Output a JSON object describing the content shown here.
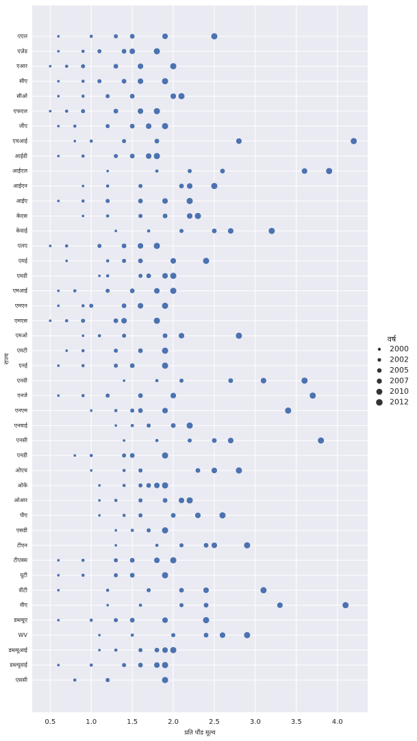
{
  "chart_data": {
    "type": "scatter",
    "x_label": "प्रति पौंड मूल्य",
    "y_label": "राज्य",
    "legend_title": "वर्ष",
    "categories": [
      "एएल",
      "एज़ेड",
      "एआर",
      "सीए",
      "सीओ",
      "एफएल",
      "जीए",
      "एचआई",
      "आईडी",
      "आईएल",
      "आईएन",
      "आईए",
      "केएस",
      "केवाई",
      "एलए",
      "एमई",
      "एमडी",
      "एमआई",
      "एमएन",
      "एमएस",
      "एमओ",
      "एमटी",
      "एनई",
      "एनवी",
      "एनजे",
      "एनएम",
      "एनवाई",
      "एनसी",
      "एनडी",
      "ओएच",
      "ओके",
      "ओआर",
      "पीए",
      "एसडी",
      "टीएन",
      "टीएक्स",
      "यूटी",
      "वीटी",
      "वीए",
      "डब्ल्यूए",
      "WV",
      "डब्ल्यूआई",
      "डब्ल्यूवाई",
      "एससी"
    ],
    "color": "#4c72b0",
    "series": [
      {
        "name": 2000,
        "values": [
          0.6,
          0.6,
          0.5,
          0.6,
          0.6,
          0.5,
          0.6,
          0.8,
          0.6,
          1.2,
          0.9,
          0.6,
          0.9,
          1.3,
          0.5,
          0.7,
          1.1,
          0.6,
          0.6,
          0.5,
          0.9,
          0.7,
          0.6,
          1.4,
          0.6,
          1.0,
          1.3,
          1.4,
          0.8,
          1.0,
          1.1,
          1.1,
          1.1,
          1.3,
          1.3,
          0.6,
          0.6,
          0.6,
          1.2,
          0.6,
          1.1,
          1.1,
          0.6,
          0.8
        ]
      },
      {
        "name": 2002,
        "values": [
          1.0,
          0.9,
          0.7,
          0.9,
          0.9,
          0.7,
          0.8,
          1.0,
          0.9,
          1.8,
          1.2,
          0.9,
          1.2,
          1.7,
          0.7,
          1.2,
          1.2,
          0.8,
          0.9,
          0.7,
          1.1,
          0.9,
          0.9,
          1.8,
          0.9,
          1.3,
          1.5,
          1.8,
          1.0,
          1.4,
          1.4,
          1.3,
          1.4,
          1.5,
          1.8,
          0.9,
          0.9,
          1.2,
          1.6,
          1.0,
          1.5,
          1.3,
          1.0,
          0.8
        ]
      },
      {
        "name": 2005,
        "values": [
          1.3,
          1.1,
          0.9,
          1.1,
          1.2,
          0.9,
          1.2,
          1.4,
          1.3,
          2.2,
          1.6,
          1.2,
          1.6,
          2.1,
          1.1,
          1.4,
          1.6,
          1.2,
          1.0,
          0.9,
          1.4,
          1.3,
          1.3,
          2.1,
          1.2,
          1.5,
          1.7,
          2.2,
          1.4,
          1.6,
          1.6,
          1.6,
          1.6,
          1.7,
          2.1,
          1.3,
          1.3,
          1.7,
          2.1,
          1.3,
          2.0,
          1.6,
          1.4,
          1.2
        ]
      },
      {
        "name": 2007,
        "values": [
          1.5,
          1.4,
          1.3,
          1.4,
          1.5,
          1.3,
          1.5,
          1.8,
          1.5,
          2.6,
          2.1,
          1.6,
          1.9,
          2.5,
          1.4,
          1.6,
          1.7,
          1.5,
          1.4,
          1.3,
          1.9,
          1.6,
          1.5,
          2.7,
          1.6,
          1.6,
          2.0,
          2.5,
          1.5,
          2.3,
          1.7,
          1.9,
          2.0,
          1.9,
          2.4,
          1.5,
          1.5,
          2.1,
          2.4,
          1.5,
          2.4,
          1.8,
          1.6,
          1.9
        ]
      },
      {
        "name": 2010,
        "values": [
          1.9,
          1.5,
          1.6,
          1.6,
          2.0,
          1.6,
          1.7,
          2.8,
          1.7,
          3.6,
          2.2,
          1.9,
          2.2,
          2.7,
          1.6,
          2.0,
          1.9,
          1.8,
          1.6,
          1.4,
          2.1,
          1.9,
          1.9,
          3.1,
          2.0,
          1.9,
          2.2,
          2.7,
          1.9,
          2.5,
          1.8,
          2.1,
          2.3,
          1.9,
          2.5,
          1.8,
          1.9,
          2.4,
          3.3,
          1.9,
          2.6,
          1.9,
          1.8,
          1.9
        ]
      },
      {
        "name": 2012,
        "values": [
          2.5,
          1.8,
          2.0,
          1.9,
          2.1,
          1.8,
          1.9,
          4.2,
          1.8,
          3.9,
          2.5,
          2.2,
          2.3,
          3.2,
          1.8,
          2.4,
          2.0,
          2.0,
          1.9,
          1.8,
          2.8,
          1.9,
          1.9,
          3.6,
          3.7,
          3.4,
          2.2,
          3.8,
          1.9,
          2.8,
          1.9,
          2.2,
          2.6,
          1.9,
          2.9,
          2.0,
          1.9,
          3.1,
          4.1,
          2.4,
          2.9,
          2.0,
          1.9,
          1.9
        ]
      }
    ],
    "xlim": [
      0.28,
      4.37
    ],
    "xticks": [
      0.5,
      {
        "value": 1,
        "label": "1.0"
      },
      1.5,
      {
        "value": 2,
        "label": "2.0"
      },
      2.5,
      {
        "value": 3,
        "label": "3.0"
      },
      3.5,
      {
        "value": 4,
        "label": "4.0"
      }
    ],
    "grid": true
  }
}
